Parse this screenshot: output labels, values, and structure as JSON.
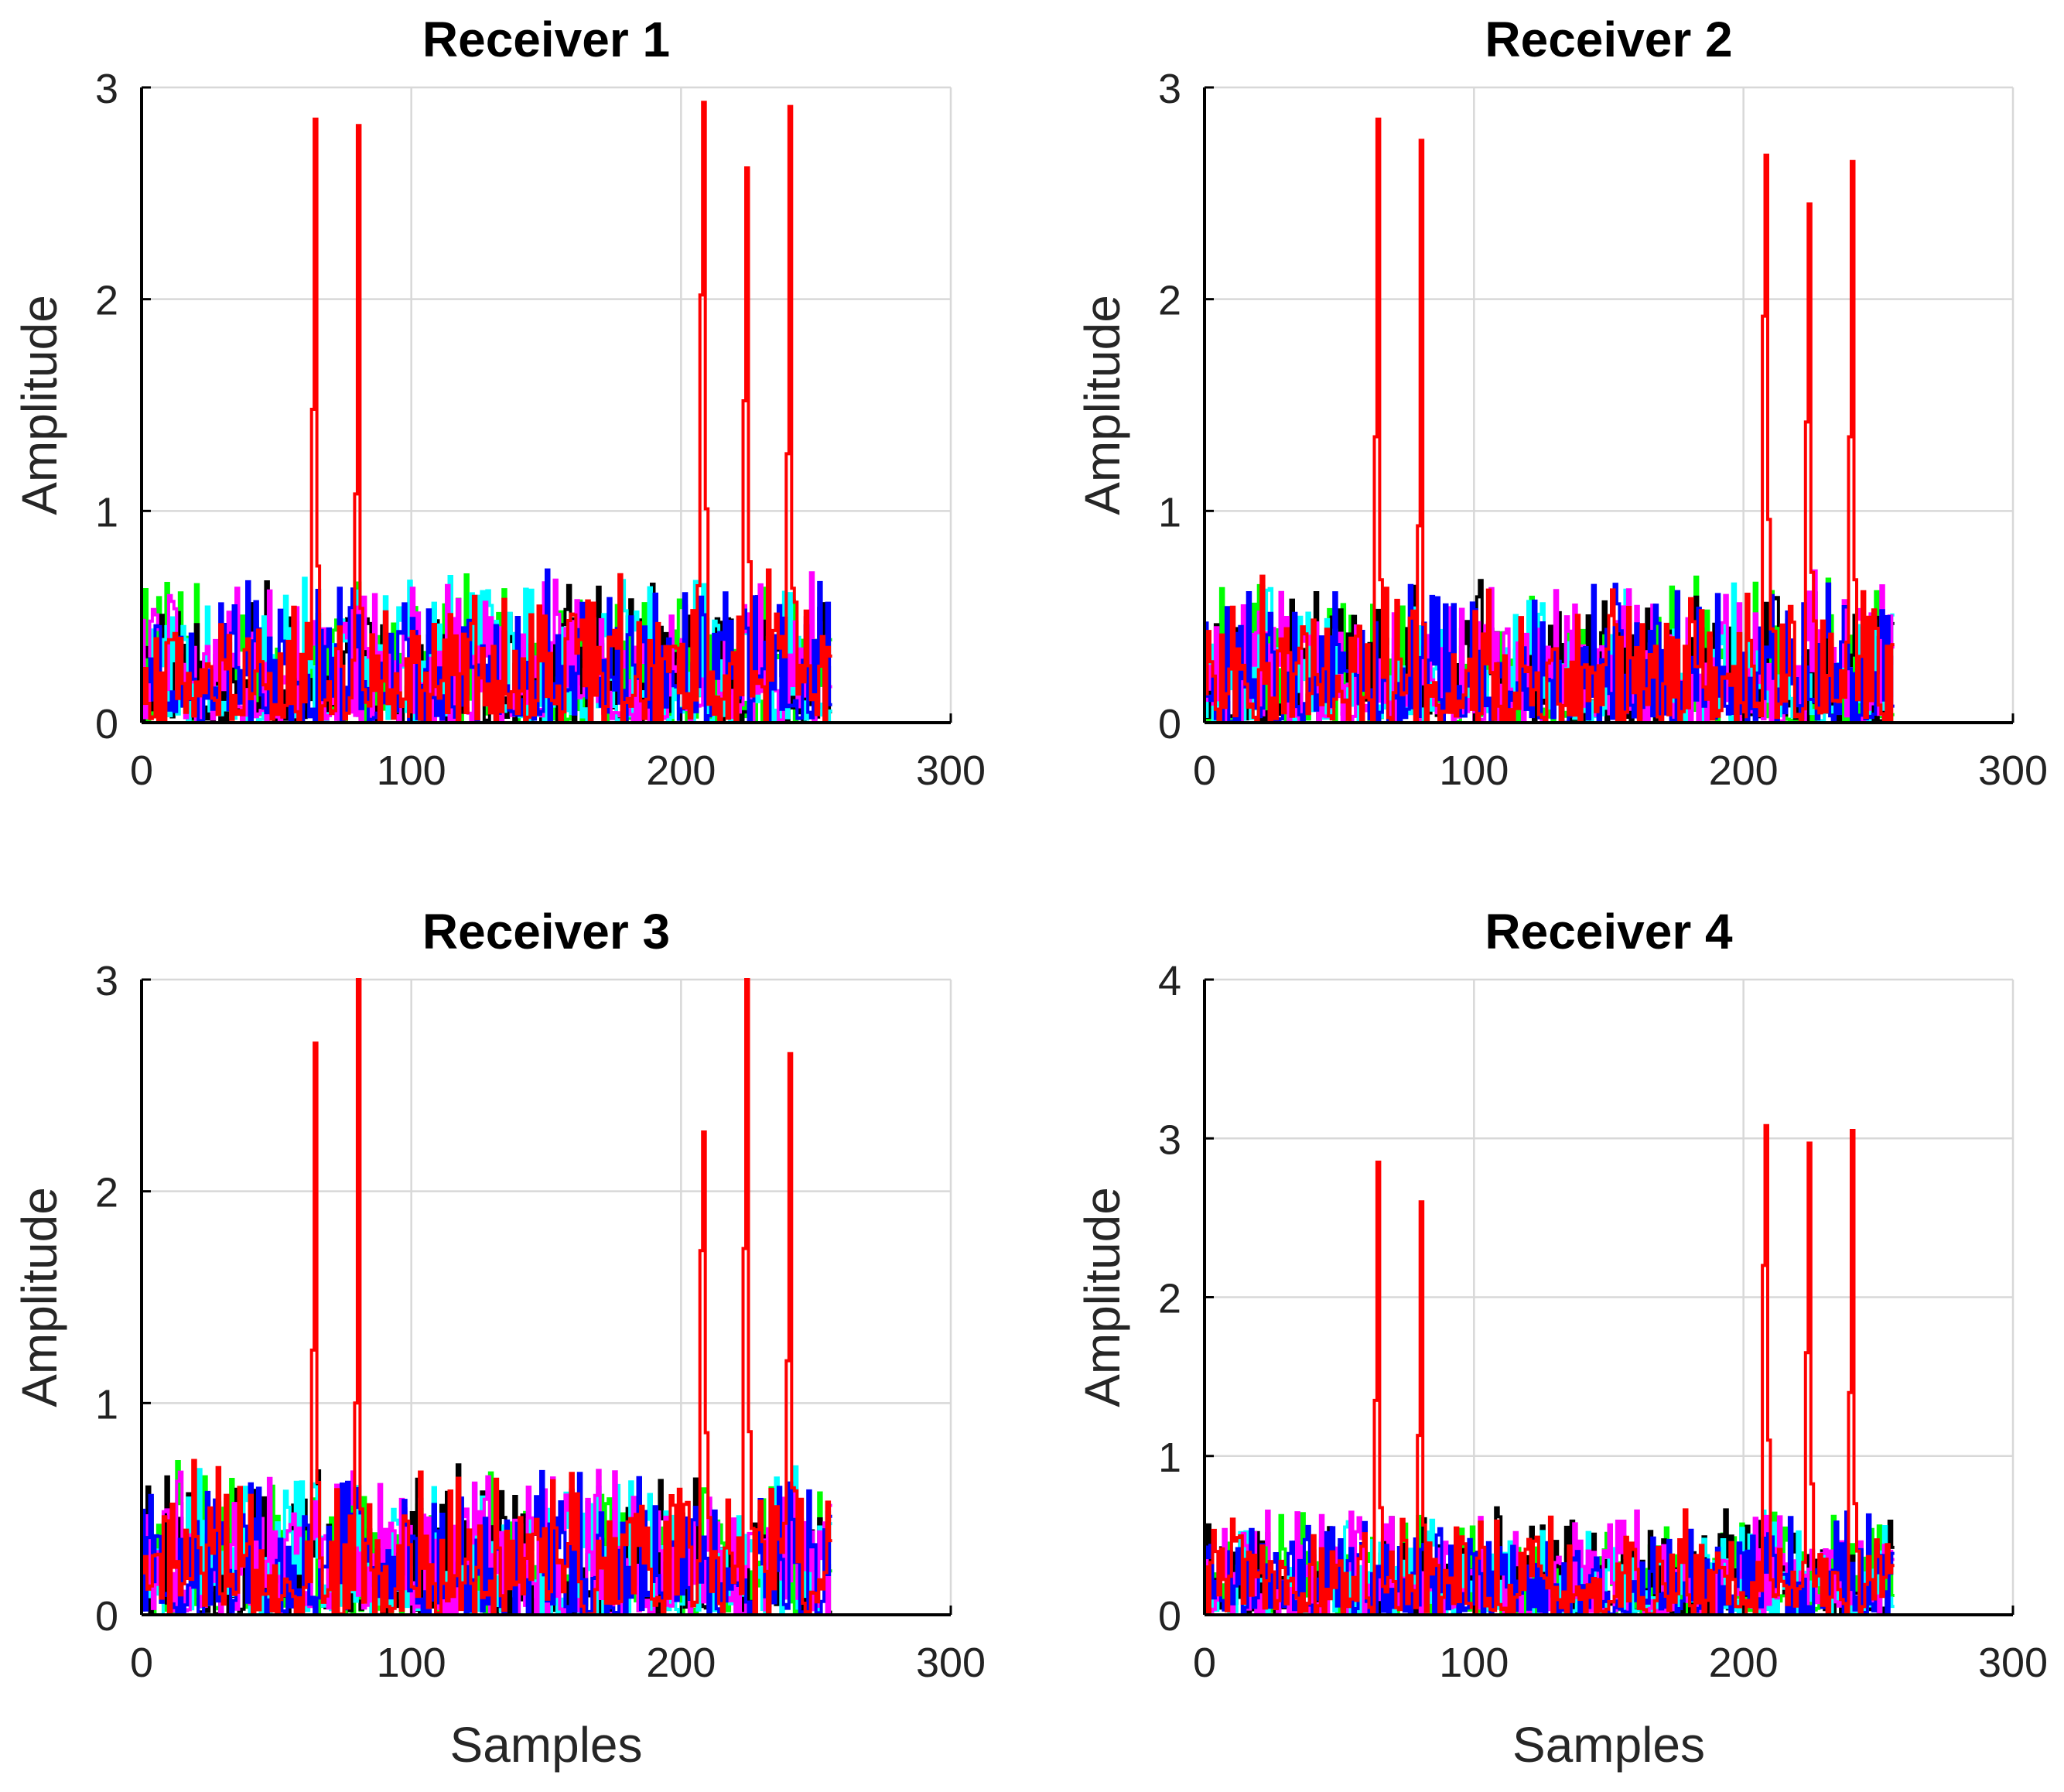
{
  "figure": {
    "layout": "2x2 grid of subplots"
  },
  "chart_data": [
    {
      "id": "receiver-1",
      "type": "line",
      "title": "Receiver 1",
      "xlabel": "",
      "ylabel": "Amplitude",
      "xlim": [
        0,
        300
      ],
      "ylim": [
        0,
        3
      ],
      "xticks": [
        0,
        100,
        200,
        300
      ],
      "yticks": [
        0,
        1,
        2,
        3
      ],
      "grid": true,
      "n_samples": 256,
      "series_colors": [
        "#00ff00",
        "#000000",
        "#00ffff",
        "#ff00ff",
        "#0000ff",
        "#ff0000"
      ],
      "noise_level": 0.75,
      "peaks": [
        {
          "sample": 64,
          "amplitude": 2.85,
          "shoulder": 1.48
        },
        {
          "sample": 80,
          "amplitude": 2.82,
          "shoulder": 1.08
        },
        {
          "sample": 208,
          "amplitude": 2.93,
          "shoulder": 2.02
        },
        {
          "sample": 224,
          "amplitude": 2.62,
          "shoulder": 1.52
        },
        {
          "sample": 240,
          "amplitude": 2.91,
          "shoulder": 1.27
        }
      ]
    },
    {
      "id": "receiver-2",
      "type": "line",
      "title": "Receiver 2",
      "xlabel": "",
      "ylabel": "Amplitude",
      "xlim": [
        0,
        300
      ],
      "ylim": [
        0,
        3
      ],
      "xticks": [
        0,
        100,
        200,
        300
      ],
      "yticks": [
        0,
        1,
        2,
        3
      ],
      "grid": true,
      "n_samples": 256,
      "series_colors": [
        "#00ff00",
        "#000000",
        "#00ffff",
        "#ff00ff",
        "#0000ff",
        "#ff0000"
      ],
      "noise_level": 0.72,
      "peaks": [
        {
          "sample": 64,
          "amplitude": 2.85,
          "shoulder": 1.35
        },
        {
          "sample": 80,
          "amplitude": 2.75,
          "shoulder": 0.93
        },
        {
          "sample": 208,
          "amplitude": 2.68,
          "shoulder": 1.92
        },
        {
          "sample": 224,
          "amplitude": 2.45,
          "shoulder": 1.42
        },
        {
          "sample": 240,
          "amplitude": 2.65,
          "shoulder": 1.35
        }
      ]
    },
    {
      "id": "receiver-3",
      "type": "line",
      "title": "Receiver 3",
      "xlabel": "Samples",
      "ylabel": "Amplitude",
      "xlim": [
        0,
        300
      ],
      "ylim": [
        0,
        3
      ],
      "xticks": [
        0,
        100,
        200,
        300
      ],
      "yticks": [
        0,
        1,
        2,
        3
      ],
      "grid": true,
      "n_samples": 256,
      "series_colors": [
        "#00ff00",
        "#000000",
        "#00ffff",
        "#ff00ff",
        "#0000ff",
        "#ff0000"
      ],
      "noise_level": 0.75,
      "peaks": [
        {
          "sample": 64,
          "amplitude": 2.7,
          "shoulder": 1.25
        },
        {
          "sample": 80,
          "amplitude": 3.0,
          "shoulder": 1.0
        },
        {
          "sample": 208,
          "amplitude": 2.28,
          "shoulder": 1.72
        },
        {
          "sample": 224,
          "amplitude": 3.0,
          "shoulder": 1.73
        },
        {
          "sample": 240,
          "amplitude": 2.65,
          "shoulder": 1.2
        }
      ]
    },
    {
      "id": "receiver-4",
      "type": "line",
      "title": "Receiver 4",
      "xlabel": "Samples",
      "ylabel": "Amplitude",
      "xlim": [
        0,
        300
      ],
      "ylim": [
        0,
        4
      ],
      "xticks": [
        0,
        100,
        200,
        300
      ],
      "yticks": [
        0,
        1,
        2,
        3,
        4
      ],
      "grid": true,
      "n_samples": 256,
      "series_colors": [
        "#00ff00",
        "#000000",
        "#00ffff",
        "#ff00ff",
        "#0000ff",
        "#ff0000"
      ],
      "noise_level": 0.7,
      "peaks": [
        {
          "sample": 64,
          "amplitude": 2.85,
          "shoulder": 1.35
        },
        {
          "sample": 80,
          "amplitude": 2.6,
          "shoulder": 1.13
        },
        {
          "sample": 208,
          "amplitude": 3.08,
          "shoulder": 2.2
        },
        {
          "sample": 224,
          "amplitude": 2.97,
          "shoulder": 1.65
        },
        {
          "sample": 240,
          "amplitude": 3.05,
          "shoulder": 1.4
        }
      ]
    }
  ]
}
